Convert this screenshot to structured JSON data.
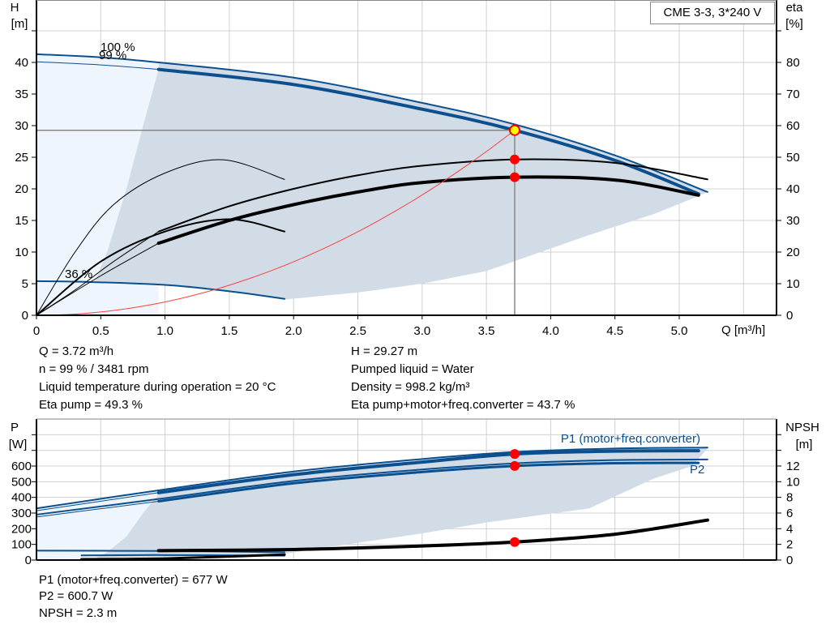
{
  "title": "CME 3-3, 3*240 V",
  "colors": {
    "head_curve": "#0b4f8e",
    "efficiency_curve": "#000000",
    "operating_area": "#d1dce7",
    "extended_area": "#eef5fc",
    "duty_point": "#ff0000",
    "duty_point_head": "#ffff00",
    "system_curve": "#ff4040",
    "grid": "#d0d0d0"
  },
  "chart_data": [
    {
      "type": "line",
      "name_box": "CME 3-3, 3*240 V",
      "xlabel": "Q [m³/h]",
      "ylabel": "H",
      "ylabel_unit": "[m]",
      "y2label": "eta",
      "y2label_unit": "[%]",
      "xlim": [
        0,
        5.75
      ],
      "ylim": [
        0,
        50
      ],
      "y2lim": [
        0,
        100
      ],
      "grid": true,
      "x_ticks": [
        "0",
        "0.5",
        "1.0",
        "1.5",
        "2.0",
        "2.5",
        "3.0",
        "3.5",
        "4.0",
        "4.5",
        "5.0"
      ],
      "y_ticks": [
        "0",
        "5",
        "10",
        "15",
        "20",
        "25",
        "30",
        "35",
        "40"
      ],
      "y2_ticks": [
        "0",
        "10",
        "20",
        "30",
        "40",
        "50",
        "60",
        "70",
        "80"
      ],
      "annotations": [
        "100 %",
        "99 %",
        "36 %"
      ],
      "series": [
        {
          "id": "head-100",
          "axis": "H",
          "width": 2,
          "points": [
            [
              0,
              41.3
            ],
            [
              0.5,
              40.8
            ],
            [
              0.95,
              40
            ],
            [
              2,
              37.6
            ],
            [
              3,
              33.6
            ],
            [
              3.72,
              30.2
            ],
            [
              4.5,
              25.3
            ],
            [
              5.22,
              19.5
            ]
          ]
        },
        {
          "id": "head-99",
          "axis": "H",
          "width": 4,
          "points": [
            [
              0.95,
              38.9
            ],
            [
              2,
              36.5
            ],
            [
              3,
              32.6
            ],
            [
              3.72,
              29.27
            ],
            [
              4.5,
              24.5
            ],
            [
              5.15,
              19.2
            ]
          ]
        },
        {
          "id": "head-99-ext",
          "axis": "H",
          "width": 1,
          "points": [
            [
              0,
              40.1
            ],
            [
              0.5,
              39.6
            ],
            [
              0.95,
              38.9
            ]
          ]
        },
        {
          "id": "head-36",
          "axis": "H",
          "width": 2,
          "points": [
            [
              0,
              5.4
            ],
            [
              0.35,
              5.3
            ],
            [
              1,
              4.8
            ],
            [
              1.5,
              3.8
            ],
            [
              1.93,
              2.6
            ]
          ]
        },
        {
          "id": "eta-pump",
          "axis": "eta",
          "width": 2,
          "points": [
            [
              0.95,
              26.5
            ],
            [
              1.5,
              34.5
            ],
            [
              2,
              40
            ],
            [
              2.5,
              44.3
            ],
            [
              3,
              47.3
            ],
            [
              3.72,
              49.3
            ],
            [
              4.5,
              48.2
            ],
            [
              5.22,
              43
            ]
          ]
        },
        {
          "id": "eta-pump-ext",
          "axis": "eta",
          "width": 1,
          "points": [
            [
              0,
              0
            ],
            [
              0.3,
              8
            ],
            [
              0.6,
              17
            ],
            [
              0.95,
              26.5
            ]
          ]
        },
        {
          "id": "eta-total",
          "axis": "eta",
          "width": 4,
          "points": [
            [
              0.95,
              22.8
            ],
            [
              1.5,
              30
            ],
            [
              2,
              35
            ],
            [
              2.5,
              39
            ],
            [
              3,
              42
            ],
            [
              3.72,
              43.7
            ],
            [
              4.5,
              42.8
            ],
            [
              5.15,
              38
            ]
          ]
        },
        {
          "id": "eta-total-ext",
          "axis": "eta",
          "width": 1,
          "points": [
            [
              0,
              0
            ],
            [
              0.5,
              12.5
            ],
            [
              0.95,
              22.8
            ]
          ]
        },
        {
          "id": "eta-pump-min",
          "axis": "eta",
          "width": 1,
          "points": [
            [
              0,
              0
            ],
            [
              0.3,
              20
            ],
            [
              0.6,
              35
            ],
            [
              1,
              45
            ],
            [
              1.45,
              49.2
            ],
            [
              1.93,
              43
            ]
          ]
        },
        {
          "id": "eta-total-min",
          "axis": "eta",
          "width": 2,
          "points": [
            [
              0,
              0
            ],
            [
              0.5,
              17
            ],
            [
              1,
              26.5
            ],
            [
              1.5,
              30.4
            ],
            [
              1.93,
              26.5
            ]
          ]
        }
      ],
      "system_curve": {
        "k": 2.115,
        "q_max": 3.72
      },
      "duty_point": {
        "Q": 3.72,
        "H": 29.27,
        "eta_pump": 49.3,
        "eta_total": 43.7
      }
    },
    {
      "type": "line",
      "ylabel": "P",
      "ylabel_unit": "[W]",
      "y2label": "NPSH",
      "y2label_unit": "[m]",
      "xlim": [
        0,
        5.75
      ],
      "ylim": [
        0,
        900
      ],
      "y2lim": [
        0,
        18
      ],
      "grid": true,
      "y_ticks": [
        "0",
        "100",
        "200",
        "300",
        "400",
        "500",
        "600"
      ],
      "y2_ticks": [
        "0",
        "2",
        "4",
        "6",
        "8",
        "10",
        "12"
      ],
      "legend": [
        "P1 (motor+freq.converter)",
        "P2"
      ],
      "series": [
        {
          "id": "p1-100",
          "axis": "P",
          "width": 2,
          "points": [
            [
              0,
              330
            ],
            [
              0.95,
              445
            ],
            [
              2,
              565
            ],
            [
              3,
              645
            ],
            [
              3.72,
              690
            ],
            [
              4.5,
              712
            ],
            [
              5.22,
              718
            ]
          ]
        },
        {
          "id": "p1-99",
          "axis": "P",
          "width": 4,
          "points": [
            [
              0.95,
              430
            ],
            [
              2,
              545
            ],
            [
              3,
              625
            ],
            [
              3.72,
              677
            ],
            [
              4.5,
              695
            ],
            [
              5.15,
              698
            ]
          ]
        },
        {
          "id": "p1-99-ext",
          "axis": "P",
          "width": 1,
          "points": [
            [
              0,
              315
            ],
            [
              0.95,
              430
            ]
          ]
        },
        {
          "id": "p2-100",
          "axis": "P",
          "width": 2,
          "points": [
            [
              0,
              290
            ],
            [
              0.95,
              390
            ],
            [
              2,
              505
            ],
            [
              3,
              578
            ],
            [
              3.72,
              617
            ],
            [
              4.5,
              638
            ],
            [
              5.22,
              642
            ]
          ]
        },
        {
          "id": "p2-99",
          "axis": "P",
          "width": 3,
          "points": [
            [
              0.95,
              375
            ],
            [
              2,
              490
            ],
            [
              3,
              562
            ],
            [
              3.72,
              600.7
            ],
            [
              4.5,
              618
            ],
            [
              5.15,
              620
            ]
          ]
        },
        {
          "id": "p2-99-ext",
          "axis": "P",
          "width": 1,
          "points": [
            [
              0,
              275
            ],
            [
              0.95,
              375
            ]
          ]
        },
        {
          "id": "p1-min",
          "axis": "P",
          "width": 2,
          "points": [
            [
              0,
              60
            ],
            [
              0.95,
              58
            ],
            [
              1.93,
              50
            ]
          ]
        },
        {
          "id": "p2-min",
          "axis": "P",
          "width": 2,
          "points": [
            [
              0.35,
              30
            ],
            [
              1,
              32
            ],
            [
              1.93,
              28
            ]
          ]
        },
        {
          "id": "npsh",
          "axis": "NPSH",
          "width": 4,
          "points": [
            [
              0.95,
              1.2
            ],
            [
              2,
              1.35
            ],
            [
              3,
              1.8
            ],
            [
              3.72,
              2.3
            ],
            [
              4.5,
              3.3
            ],
            [
              5.22,
              5.1
            ]
          ]
        },
        {
          "id": "npsh-min",
          "axis": "NPSH",
          "width": 3,
          "points": [
            [
              0.35,
              0.1
            ],
            [
              1,
              0.2
            ],
            [
              1.93,
              0.7
            ]
          ]
        }
      ],
      "duty_point": {
        "P1": 677,
        "P2": 600.7,
        "NPSH": 2.3
      }
    }
  ],
  "info_top": {
    "left": [
      "Q = 3.72 m³/h",
      "n = 99 % / 3481 rpm",
      "Liquid temperature during operation = 20 °C",
      "Eta pump = 49.3 %"
    ],
    "right": [
      "H = 29.27 m",
      "Pumped liquid = Water",
      "Density = 998.2 kg/m³",
      "Eta pump+motor+freq.converter = 43.7 %"
    ]
  },
  "info_bottom": [
    "P1 (motor+freq.converter) = 677 W",
    "P2 = 600.7 W",
    "NPSH = 2.3 m"
  ]
}
